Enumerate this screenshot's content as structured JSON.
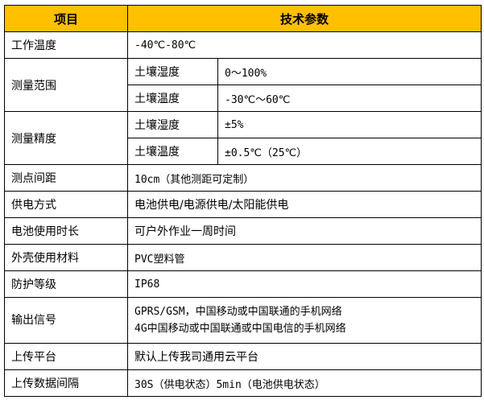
{
  "header": {
    "item": "项目",
    "spec": "技术参数",
    "color": "#FFC000"
  },
  "rows": {
    "work_temp": {
      "label": "工作温度",
      "value": "-40℃-80℃"
    },
    "range": {
      "label": "测量范围",
      "sub": [
        {
          "label": "土壤湿度",
          "value": "0～100%"
        },
        {
          "label": "土壤温度",
          "value": "-30℃～60℃"
        }
      ]
    },
    "accuracy": {
      "label": "测量精度",
      "sub": [
        {
          "label": "土壤湿度",
          "value": "±5%"
        },
        {
          "label": "土壤温度",
          "value": "±0.5℃（25℃）"
        }
      ]
    },
    "spacing": {
      "label": "测点间距",
      "value": "10cm（其他测距可定制）"
    },
    "power": {
      "label": "供电方式",
      "value": "电池供电/电源供电/太阳能供电"
    },
    "battery": {
      "label": "电池使用时长",
      "value": "可户外作业一周时间"
    },
    "shell": {
      "label": "外壳使用材料",
      "value": "PVC塑料管"
    },
    "protection": {
      "label": "防护等级",
      "value": "IP68"
    },
    "output": {
      "label": "输出信号",
      "lines": [
        "GPRS/GSM，中国移动或中国联通的手机网络",
        "4G中国移动或中国联通或中国电信的手机网络"
      ]
    },
    "platform": {
      "label": "上传平台",
      "value": "默认上传我司通用云平台"
    },
    "interval": {
      "label": "上传数据间隔",
      "value": "30S（供电状态）5min（电池供电状态）"
    }
  }
}
